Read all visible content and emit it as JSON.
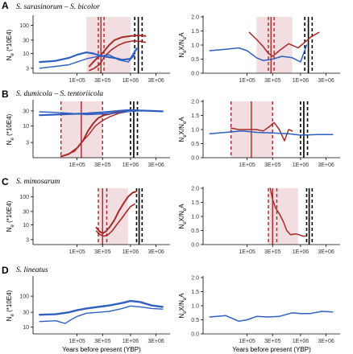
{
  "colors": {
    "red": "#a52a2a",
    "blue": "#2f5fbf",
    "shade": "#f2dde1",
    "black": "#000000"
  },
  "chart_data": [
    {
      "type": "line",
      "panel": "A",
      "title": "S. sarasinorum – S. bicolor",
      "side": "left",
      "ylabel": "Ne (*10E4)",
      "log_y": true,
      "ylim": [
        2,
        200
      ],
      "yticks": [
        "3",
        "10",
        "30",
        "100"
      ],
      "yvals": [
        3,
        10,
        30,
        100
      ],
      "xticks": [
        "1E+05",
        "3E+05",
        "1E+06",
        "3E+06"
      ],
      "shade": [
        150000,
        1000000
      ],
      "vlines": [
        {
          "x": 250000,
          "color": "red",
          "dash": true
        },
        {
          "x": 280000,
          "color": "red",
          "dash": false
        },
        {
          "x": 320000,
          "color": "red",
          "dash": true
        },
        {
          "x": 1200000,
          "color": "black",
          "dash": true
        },
        {
          "x": 1400000,
          "color": "black",
          "dash": false
        },
        {
          "x": 1650000,
          "color": "black",
          "dash": true
        }
      ],
      "series": [
        {
          "color": "red",
          "width": 2,
          "x": [
            170000,
            200000,
            240000,
            280000,
            330000,
            400000,
            500000,
            700000,
            1000000,
            1400000,
            1900000
          ],
          "y": [
            3.5,
            5,
            7,
            9,
            13,
            20,
            30,
            38,
            42,
            44,
            42
          ]
        },
        {
          "color": "red",
          "width": 1.6,
          "x": [
            170000,
            210000,
            260000,
            300000,
            350000,
            450000,
            600000,
            800000,
            1100000,
            1500000,
            1900000
          ],
          "y": [
            2.5,
            3,
            4,
            6,
            9,
            14,
            20,
            25,
            28,
            27,
            25
          ]
        },
        {
          "color": "blue",
          "width": 2.2,
          "x": [
            20000,
            40000,
            70000,
            100000,
            150000,
            200000,
            300000,
            500000,
            700000,
            1000000,
            1300000
          ],
          "y": [
            5,
            5.5,
            7,
            9,
            11,
            10,
            8,
            7,
            6,
            6.5,
            15
          ]
        },
        {
          "color": "blue",
          "width": 1.4,
          "x": [
            20000,
            40000,
            70000,
            100000,
            150000,
            250000,
            400000,
            600000,
            900000,
            1200000
          ],
          "y": [
            3,
            3.5,
            4,
            5,
            6.5,
            8,
            9,
            6,
            5,
            9
          ]
        }
      ]
    },
    {
      "type": "line",
      "panel": "A",
      "side": "right",
      "ylabel": "NeX/NeA",
      "log_y": false,
      "ylim": [
        0,
        2
      ],
      "yticks": [
        "0.0",
        "0.5",
        "1.0",
        "1.5",
        "2.0"
      ],
      "yvals": [
        0,
        0.5,
        1,
        1.5,
        2
      ],
      "xticks": [
        "1E+05",
        "3E+05",
        "1E+06",
        "3E+06"
      ],
      "shade": [
        150000,
        700000
      ],
      "vlines": [
        {
          "x": 250000,
          "color": "red",
          "dash": true
        },
        {
          "x": 280000,
          "color": "red",
          "dash": false
        },
        {
          "x": 320000,
          "color": "red",
          "dash": true
        },
        {
          "x": 1200000,
          "color": "black",
          "dash": true
        },
        {
          "x": 1400000,
          "color": "black",
          "dash": false
        },
        {
          "x": 1650000,
          "color": "black",
          "dash": true
        }
      ],
      "series": [
        {
          "color": "red",
          "width": 1.5,
          "x": [
            110000,
            150000,
            200000,
            250000,
            300000,
            400000,
            600000,
            900000,
            1200000,
            1600000,
            2200000
          ],
          "y": [
            1.45,
            1.2,
            0.95,
            0.7,
            0.6,
            0.8,
            1.05,
            0.9,
            1.1,
            1.3,
            1.45
          ]
        },
        {
          "color": "blue",
          "width": 1.5,
          "x": [
            20000,
            40000,
            70000,
            100000,
            150000,
            200000,
            300000,
            450000,
            700000,
            1000000,
            1300000
          ],
          "y": [
            0.8,
            0.85,
            0.9,
            0.8,
            0.55,
            0.45,
            0.5,
            0.6,
            0.55,
            0.4,
            1.0
          ]
        }
      ]
    },
    {
      "type": "line",
      "panel": "B",
      "title": "S. dumicola – S. tentoriicola",
      "side": "left",
      "ylabel": "Ne (*10E4)",
      "log_y": true,
      "ylim": [
        1,
        60
      ],
      "yticks": [
        "3",
        "10",
        "30"
      ],
      "yvals": [
        3,
        10,
        30
      ],
      "xticks": [
        "1E+05",
        "3E+05",
        "1E+06",
        "3E+06"
      ],
      "shade": [
        50000,
        300000
      ],
      "vlines": [
        {
          "x": 50000,
          "color": "red",
          "dash": true
        },
        {
          "x": 120000,
          "color": "red",
          "dash": false
        },
        {
          "x": 300000,
          "color": "red",
          "dash": true
        },
        {
          "x": 1000000,
          "color": "black",
          "dash": true
        },
        {
          "x": 1150000,
          "color": "black",
          "dash": false
        },
        {
          "x": 1350000,
          "color": "black",
          "dash": true
        }
      ],
      "series": [
        {
          "color": "red",
          "width": 2,
          "x": [
            50000,
            70000,
            100000,
            130000,
            160000,
            200000,
            250000,
            320000,
            450000,
            600000,
            800000
          ],
          "y": [
            1.1,
            1.3,
            2,
            3.5,
            7,
            12,
            18,
            22,
            25,
            28,
            30
          ]
        },
        {
          "color": "red",
          "width": 1.4,
          "x": [
            60000,
            90000,
            120000,
            160000,
            220000,
            300000,
            420000,
            600000,
            850000
          ],
          "y": [
            1.2,
            1.6,
            3,
            5,
            10,
            15,
            20,
            25,
            28
          ]
        },
        {
          "color": "blue",
          "width": 2.2,
          "x": [
            20000,
            40000,
            80000,
            150000,
            300000,
            600000,
            1000000,
            1500000,
            2500000,
            4000000
          ],
          "y": [
            22,
            23,
            24,
            25,
            27,
            30,
            32,
            31,
            30,
            29
          ]
        },
        {
          "color": "blue",
          "width": 1.4,
          "x": [
            20000,
            40000,
            80000,
            150000,
            300000,
            600000,
            1000000,
            1500000,
            2500000,
            4000000
          ],
          "y": [
            28,
            27,
            25,
            23,
            24,
            26,
            29,
            30,
            30,
            29
          ]
        }
      ]
    },
    {
      "type": "line",
      "panel": "B",
      "side": "right",
      "ylabel": "NeX/NeA",
      "log_y": false,
      "ylim": [
        0,
        2
      ],
      "yticks": [
        "0.0",
        "0.5",
        "1.0",
        "1.5",
        "2.0"
      ],
      "yvals": [
        0,
        0.5,
        1,
        1.5,
        2
      ],
      "xticks": [
        "1E+05",
        "3E+05",
        "1E+06",
        "3E+06"
      ],
      "shade": [
        50000,
        300000
      ],
      "vlines": [
        {
          "x": 50000,
          "color": "red",
          "dash": true
        },
        {
          "x": 120000,
          "color": "red",
          "dash": false
        },
        {
          "x": 300000,
          "color": "red",
          "dash": true
        },
        {
          "x": 1000000,
          "color": "black",
          "dash": true
        },
        {
          "x": 1150000,
          "color": "black",
          "dash": false
        },
        {
          "x": 1350000,
          "color": "black",
          "dash": true
        }
      ],
      "series": [
        {
          "color": "red",
          "width": 1.5,
          "x": [
            50000,
            70000,
            100000,
            150000,
            200000,
            260000,
            320000,
            400000,
            500000,
            600000,
            700000
          ],
          "y": [
            1.05,
            1.0,
            1.0,
            1.0,
            0.95,
            1.1,
            1.25,
            1.0,
            0.6,
            1.0,
            0.95
          ]
        },
        {
          "color": "blue",
          "width": 1.5,
          "x": [
            20000,
            40000,
            80000,
            150000,
            300000,
            600000,
            1000000,
            2000000,
            4000000
          ],
          "y": [
            0.85,
            0.9,
            0.95,
            0.9,
            0.88,
            0.85,
            0.8,
            0.82,
            0.82
          ]
        }
      ]
    },
    {
      "type": "line",
      "panel": "C",
      "title": "S. mimosarum",
      "side": "left",
      "ylabel": "Ne (*10E4)",
      "log_y": true,
      "ylim": [
        2,
        200
      ],
      "yticks": [
        "3",
        "10",
        "30",
        "100"
      ],
      "yvals": [
        3,
        10,
        30,
        100
      ],
      "xticks": [
        "1E+05",
        "3E+05",
        "1E+06",
        "3E+06"
      ],
      "shade": [
        250000,
        900000
      ],
      "vlines": [
        {
          "x": 250000,
          "color": "red",
          "dash": true
        },
        {
          "x": 300000,
          "color": "red",
          "dash": false
        },
        {
          "x": 360000,
          "color": "red",
          "dash": true
        },
        {
          "x": 1300000,
          "color": "black",
          "dash": true
        },
        {
          "x": 1450000,
          "color": "black",
          "dash": false
        },
        {
          "x": 1650000,
          "color": "black",
          "dash": true
        }
      ],
      "series": [
        {
          "color": "red",
          "width": 2,
          "x": [
            230000,
            260000,
            300000,
            350000,
            420000,
            500000,
            600000,
            750000,
            900000,
            1100000,
            1250000
          ],
          "y": [
            8,
            6,
            5,
            6,
            9,
            15,
            30,
            60,
            100,
            140,
            150
          ]
        },
        {
          "color": "red",
          "width": 1.6,
          "x": [
            230000,
            270000,
            320000,
            380000,
            450000,
            550000,
            700000,
            850000,
            1000000,
            1200000
          ],
          "y": [
            6,
            4.5,
            4,
            4.5,
            6,
            10,
            18,
            30,
            45,
            55
          ]
        }
      ]
    },
    {
      "type": "line",
      "panel": "C",
      "side": "right",
      "ylabel": "NeX/NeA",
      "log_y": false,
      "ylim": [
        0,
        2
      ],
      "yticks": [
        "0.0",
        "0.5",
        "1.0",
        "1.5",
        "2.0"
      ],
      "yvals": [
        0,
        0.5,
        1,
        1.5,
        2
      ],
      "xticks": [
        "1E+05",
        "3E+05",
        "1E+06",
        "3E+06"
      ],
      "shade": [
        250000,
        900000
      ],
      "vlines": [
        {
          "x": 250000,
          "color": "red",
          "dash": true
        },
        {
          "x": 300000,
          "color": "red",
          "dash": false
        },
        {
          "x": 360000,
          "color": "red",
          "dash": true
        },
        {
          "x": 1300000,
          "color": "black",
          "dash": true
        },
        {
          "x": 1450000,
          "color": "black",
          "dash": false
        },
        {
          "x": 1650000,
          "color": "black",
          "dash": true
        }
      ],
      "series": [
        {
          "color": "red",
          "width": 1.5,
          "x": [
            270000,
            300000,
            340000,
            400000,
            480000,
            550000,
            650000,
            800000,
            950000,
            1100000,
            1250000
          ],
          "y": [
            2.0,
            1.6,
            1.3,
            1.1,
            0.8,
            0.5,
            0.35,
            0.38,
            0.35,
            0.3,
            0.3
          ]
        }
      ]
    },
    {
      "type": "line",
      "panel": "D",
      "title": "S. lineatus",
      "side": "left",
      "ylabel": "Ne (*10E4)",
      "log_y": true,
      "ylim": [
        6,
        400
      ],
      "yticks": [
        "10",
        "30",
        "100"
      ],
      "yvals": [
        10,
        30,
        100
      ],
      "xticks": [
        "1E+05",
        "3E+05",
        "1E+06",
        "3E+06"
      ],
      "xlabel": "Years before present (YBP)",
      "shade": [],
      "vlines": [],
      "series": [
        {
          "color": "blue",
          "width": 2.4,
          "x": [
            20000,
            40000,
            70000,
            100000,
            150000,
            250000,
            400000,
            700000,
            1000000,
            1500000,
            2500000,
            4000000
          ],
          "y": [
            25,
            26,
            30,
            35,
            40,
            45,
            50,
            60,
            70,
            65,
            50,
            45
          ]
        },
        {
          "color": "blue",
          "width": 1.4,
          "x": [
            20000,
            40000,
            60000,
            80000,
            100000,
            150000,
            250000,
            400000,
            700000,
            1000000,
            1500000,
            2500000,
            4000000
          ],
          "y": [
            15,
            16,
            13,
            18,
            22,
            28,
            30,
            32,
            40,
            48,
            45,
            40,
            38
          ]
        }
      ]
    },
    {
      "type": "line",
      "panel": "D",
      "side": "right",
      "ylabel": "NeX/NeA",
      "log_y": false,
      "ylim": [
        0,
        2
      ],
      "yticks": [
        "0.0",
        "0.5",
        "1.0",
        "1.5",
        "2.0"
      ],
      "yvals": [
        0,
        0.5,
        1,
        1.5,
        2
      ],
      "xticks": [
        "1E+05",
        "3E+05",
        "1E+06",
        "3E+06"
      ],
      "xlabel": "Years before present (YBP)",
      "shade": [],
      "vlines": [],
      "series": [
        {
          "color": "blue",
          "width": 1.5,
          "x": [
            20000,
            40000,
            70000,
            100000,
            150000,
            250000,
            400000,
            700000,
            1000000,
            1500000,
            2500000,
            4000000
          ],
          "y": [
            0.6,
            0.65,
            0.45,
            0.5,
            0.62,
            0.6,
            0.62,
            0.75,
            0.72,
            0.72,
            0.8,
            0.78
          ]
        }
      ]
    }
  ]
}
